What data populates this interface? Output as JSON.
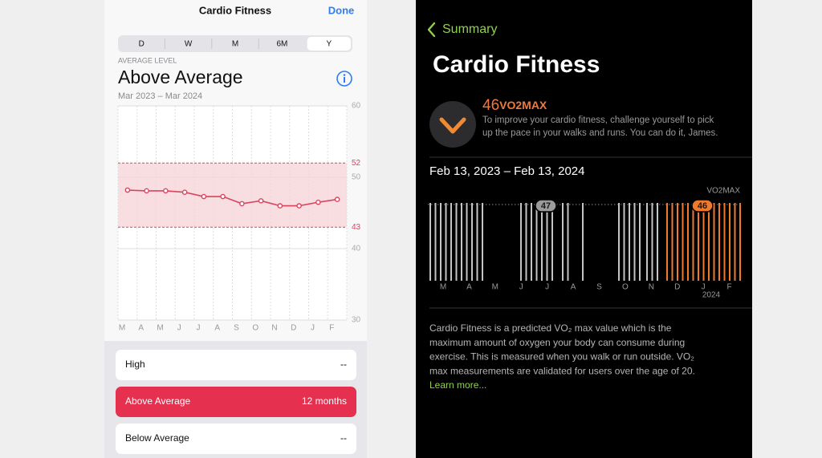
{
  "left": {
    "nav_title": "Cardio Fitness",
    "done": "Done",
    "segments": [
      "D",
      "W",
      "M",
      "6M",
      "Y"
    ],
    "selected_segment": "Y",
    "overline": "AVERAGE LEVEL",
    "level": "Above Average",
    "date_range": "Mar 2023 – Mar 2024",
    "chart_data": {
      "type": "line",
      "categories": [
        "M",
        "A",
        "M",
        "J",
        "J",
        "A",
        "S",
        "O",
        "N",
        "D",
        "J",
        "F"
      ],
      "values": [
        48.2,
        48.1,
        48.1,
        47.9,
        47.3,
        47.3,
        46.3,
        46.7,
        46.0,
        46.0,
        46.5,
        46.9
      ],
      "color": "#d9455f",
      "ylim": [
        30,
        60
      ],
      "yticks": [
        30,
        40,
        50,
        60
      ],
      "band": [
        43,
        52
      ],
      "grid": true
    },
    "levels": [
      {
        "name": "High",
        "value": "--"
      },
      {
        "name": "Above Average",
        "value": "12 months",
        "selected": true
      },
      {
        "name": "Below Average",
        "value": "--"
      }
    ]
  },
  "right": {
    "back": "Summary",
    "title": "Cardio Fitness",
    "value": 46,
    "unit": "VO2MAX",
    "message": [
      "To improve your cardio fitness, challenge yourself to pick",
      "up the pace in your walks and runs. You can do it, James."
    ],
    "date_range": "Feb 13, 2023 – Feb 13, 2024",
    "chart_data": {
      "type": "bar",
      "unit_label": "VO2MAX",
      "categories": [
        "M",
        "A",
        "M",
        "J",
        "J",
        "A",
        "S",
        "O",
        "N",
        "D",
        "J",
        "F"
      ],
      "year_label": "2024",
      "callouts": [
        47,
        46
      ]
    },
    "description": [
      "Cardio Fitness is a predicted VO₂ max value which is the",
      "maximum amount of oxygen your body can consume during",
      "exercise. This is measured when you walk or run outside. VO₂",
      "max measurements are validated for users over the age of 20."
    ],
    "link": "Learn more..."
  }
}
